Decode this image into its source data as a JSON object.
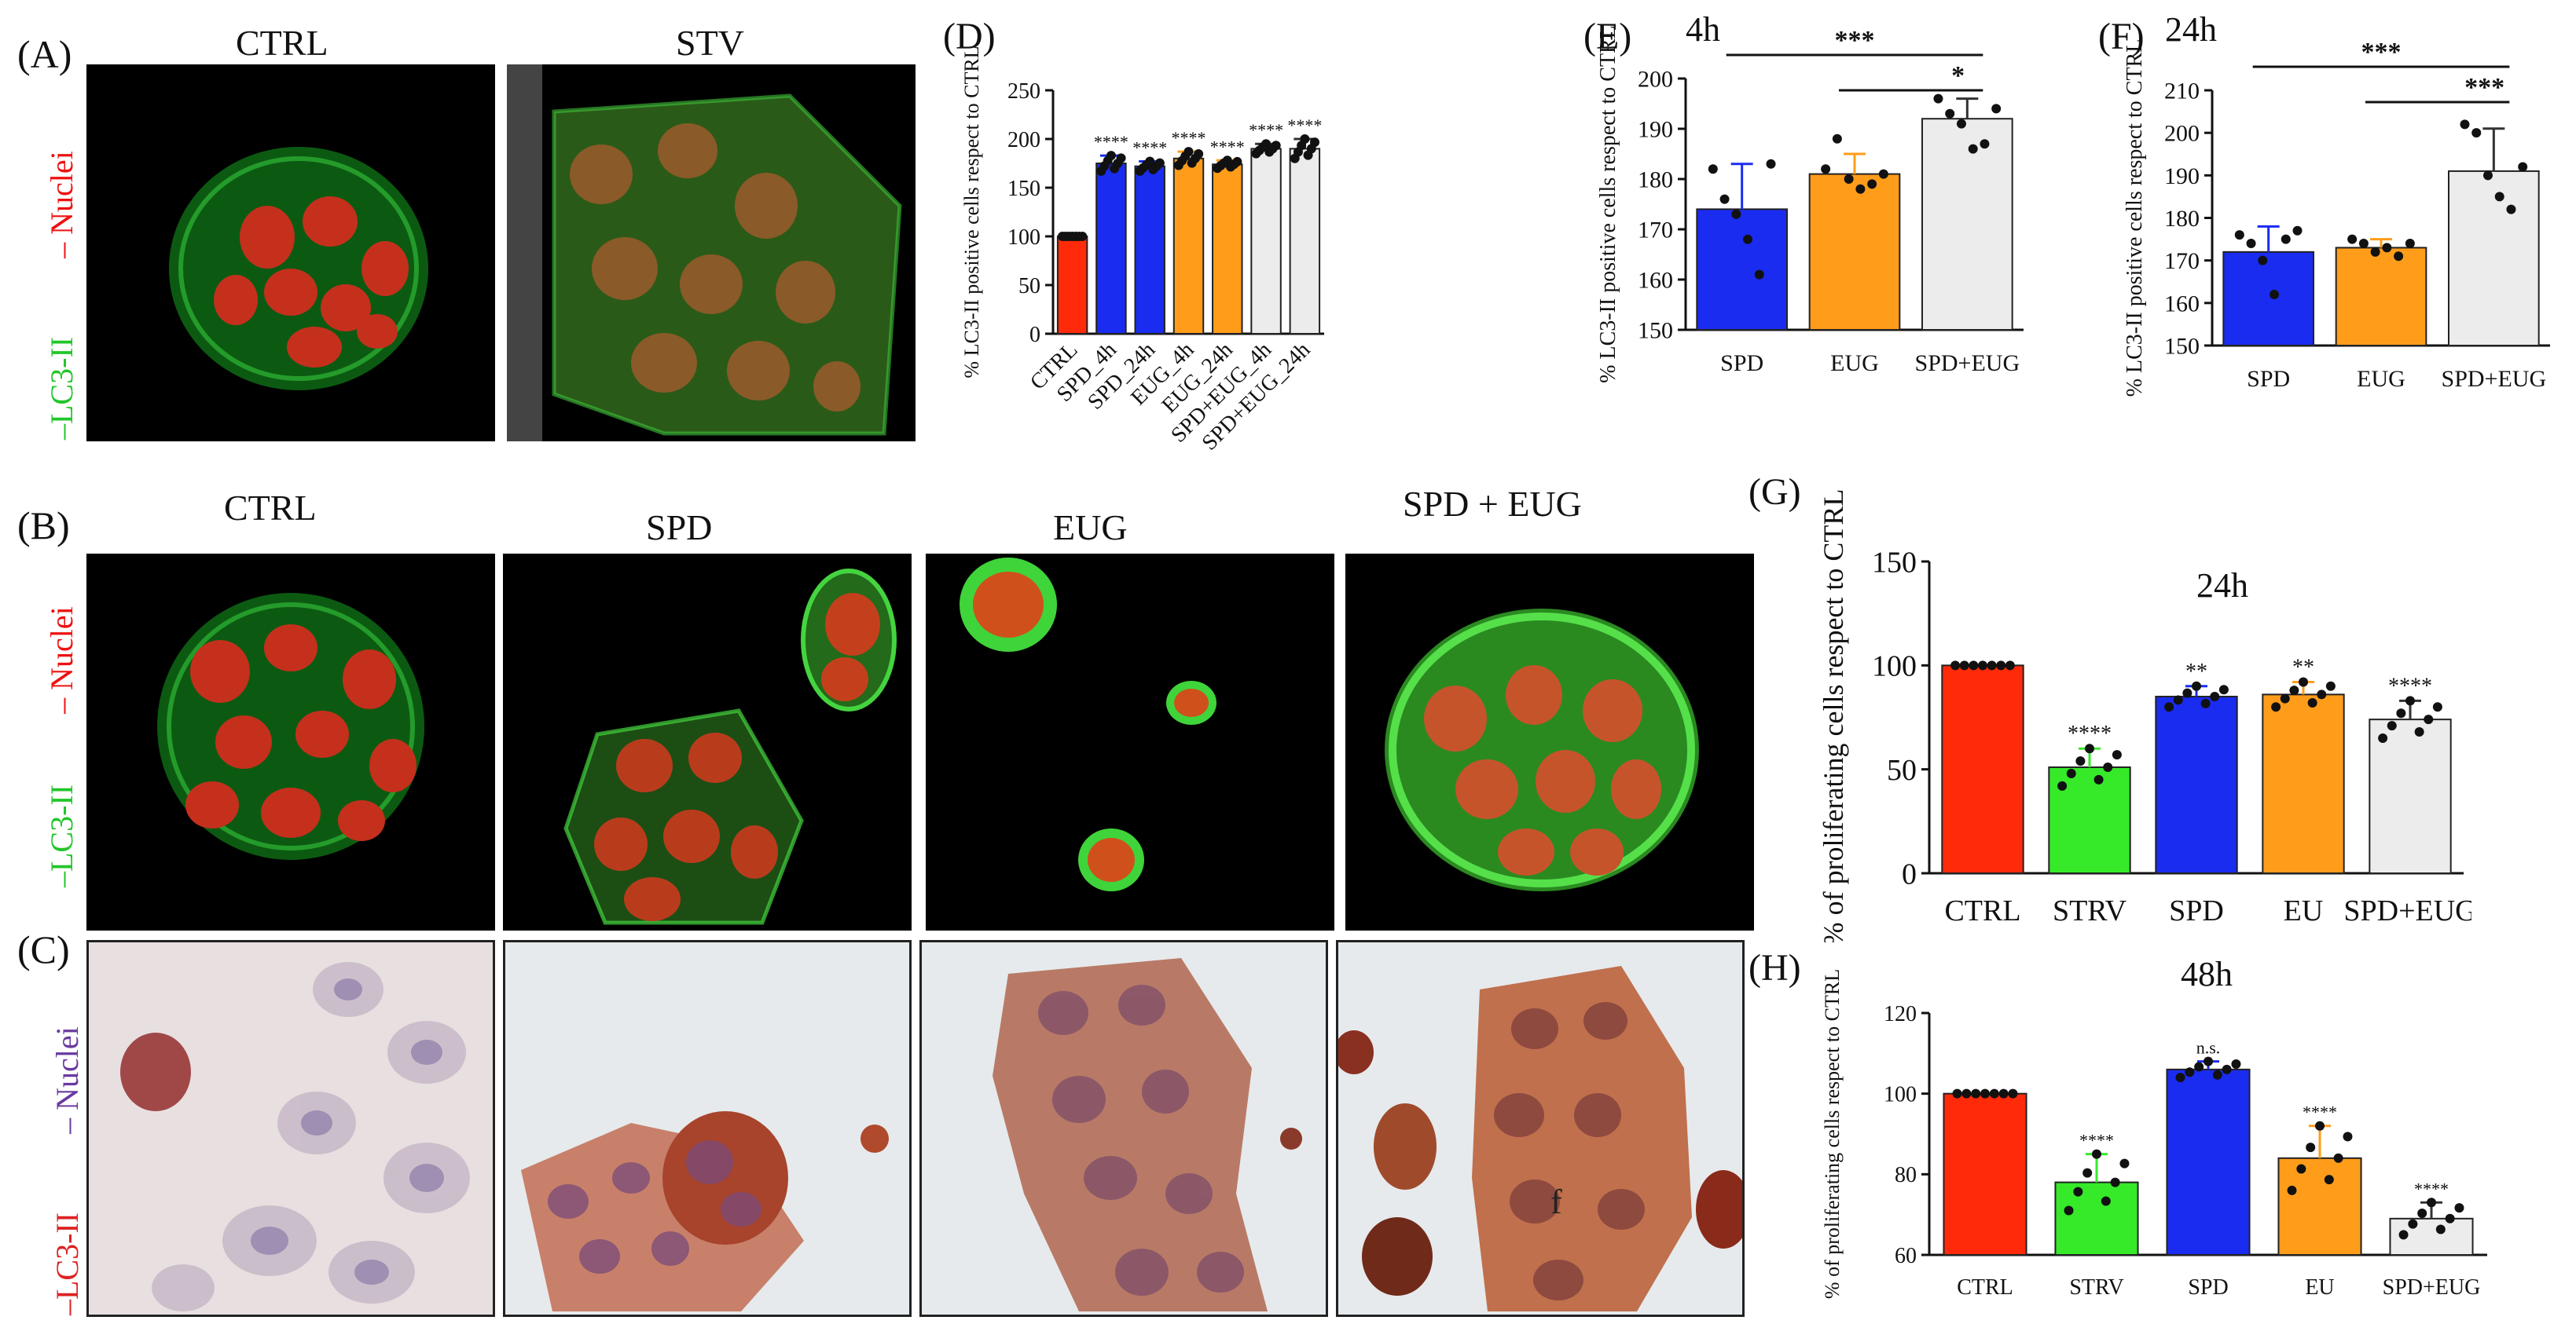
{
  "panels": {
    "A": {
      "label": "(A)",
      "titles": [
        "CTRL",
        "STV"
      ],
      "stain_nuclei": "Nuclei",
      "stain_lc3": "LC3-II"
    },
    "B": {
      "label": "(B)",
      "titles": [
        "CTRL",
        "SPD",
        "EUG",
        "SPD + EUG"
      ],
      "stain_nuclei": "Nuclei",
      "stain_lc3": "LC3-II"
    },
    "C": {
      "label": "(C)",
      "stain_nuclei": "Nuclei",
      "stain_lc3": "LC3-II",
      "annotation": "f"
    }
  },
  "colors": {
    "ctrl": "#ff2a0a",
    "spd": "#1a2cf0",
    "eug": "#ff9d1a",
    "combo": "#ececec",
    "strv": "#36ea2a"
  },
  "chart_data": [
    {
      "panel": "(D)",
      "type": "bar",
      "ylabel": "% LC3-II positive cells respect to CTRL",
      "categories": [
        "CTRL",
        "SPD_4h",
        "SPD_24h",
        "EUG_4h",
        "EUG_24h",
        "SPD+EUG_4h",
        "SPD+EUG_24h"
      ],
      "values": [
        100,
        175,
        172,
        180,
        174,
        190,
        190
      ],
      "err": [
        0,
        8,
        5,
        7,
        4,
        5,
        10
      ],
      "sig": [
        "",
        "****",
        "****",
        "****",
        "****",
        "****",
        "****"
      ],
      "ylim": [
        0,
        250
      ],
      "yticks": [
        0,
        50,
        100,
        150,
        200,
        250
      ],
      "colors": [
        "#ff2a0a",
        "#1a2cf0",
        "#1a2cf0",
        "#ff9d1a",
        "#ff9d1a",
        "#ececec",
        "#ececec"
      ]
    },
    {
      "panel": "(E)",
      "type": "bar",
      "title": "4h",
      "ylabel": "% LC3-II positive cells respect to CTRL",
      "categories": [
        "SPD",
        "EUG",
        "SPD+EUG"
      ],
      "values": [
        174,
        181,
        192
      ],
      "err": [
        9,
        4,
        4
      ],
      "points": [
        [
          182,
          176,
          173,
          168,
          161,
          183
        ],
        [
          182,
          188,
          180,
          178,
          179,
          181
        ],
        [
          196,
          193,
          191,
          186,
          187,
          194
        ]
      ],
      "ylim": [
        150,
        200
      ],
      "yticks": [
        150,
        160,
        170,
        180,
        190,
        200
      ],
      "brackets": [
        {
          "from": 0,
          "to": 2,
          "label": "***"
        },
        {
          "from": 1,
          "to": 2,
          "label": "*"
        }
      ],
      "colors": [
        "#1a2cf0",
        "#ff9d1a",
        "#ececec"
      ]
    },
    {
      "panel": "(F)",
      "type": "bar",
      "title": "24h",
      "ylabel": "% LC3-II positive cells respect to CTRL",
      "categories": [
        "SPD",
        "EUG",
        "SPD+EUG"
      ],
      "values": [
        172,
        173,
        191
      ],
      "err": [
        6,
        2,
        10
      ],
      "points": [
        [
          176,
          174,
          170,
          162,
          175,
          177
        ],
        [
          175,
          174,
          172,
          173,
          171,
          174
        ],
        [
          202,
          200,
          190,
          185,
          182,
          192
        ]
      ],
      "ylim": [
        150,
        210
      ],
      "yticks": [
        150,
        160,
        170,
        180,
        190,
        200,
        210
      ],
      "brackets": [
        {
          "from": 0,
          "to": 2,
          "label": "***"
        },
        {
          "from": 1,
          "to": 2,
          "label": "***"
        }
      ],
      "colors": [
        "#1a2cf0",
        "#ff9d1a",
        "#ececec"
      ]
    },
    {
      "panel": "(G)",
      "type": "bar",
      "title": "24h",
      "ylabel": "% of proliferating cells respect to CTRL",
      "categories": [
        "CTRL",
        "STRV",
        "SPD",
        "EU",
        "SPD+EUG"
      ],
      "values": [
        100,
        51,
        85,
        86,
        74
      ],
      "err": [
        0,
        9,
        5,
        6,
        9
      ],
      "sig": [
        "",
        "****",
        "**",
        "**",
        "****"
      ],
      "ylim": [
        0,
        150
      ],
      "yticks": [
        0,
        50,
        100,
        150
      ],
      "colors": [
        "#ff2a0a",
        "#36ea2a",
        "#1a2cf0",
        "#ff9d1a",
        "#ececec"
      ]
    },
    {
      "panel": "(H)",
      "type": "bar",
      "title": "48h",
      "ylabel": "% of proliferating cells respect to CTRL",
      "categories": [
        "CTRL",
        "STRV",
        "SPD",
        "EU",
        "SPD+EUG"
      ],
      "values": [
        100,
        78,
        106,
        84,
        69
      ],
      "err": [
        0,
        7,
        2,
        8,
        4
      ],
      "sig": [
        "",
        "****",
        "n.s.",
        "****",
        "****"
      ],
      "ylim": [
        60,
        120
      ],
      "yticks": [
        60,
        80,
        100,
        120
      ],
      "colors": [
        "#ff2a0a",
        "#36ea2a",
        "#1a2cf0",
        "#ff9d1a",
        "#ececec"
      ]
    }
  ]
}
